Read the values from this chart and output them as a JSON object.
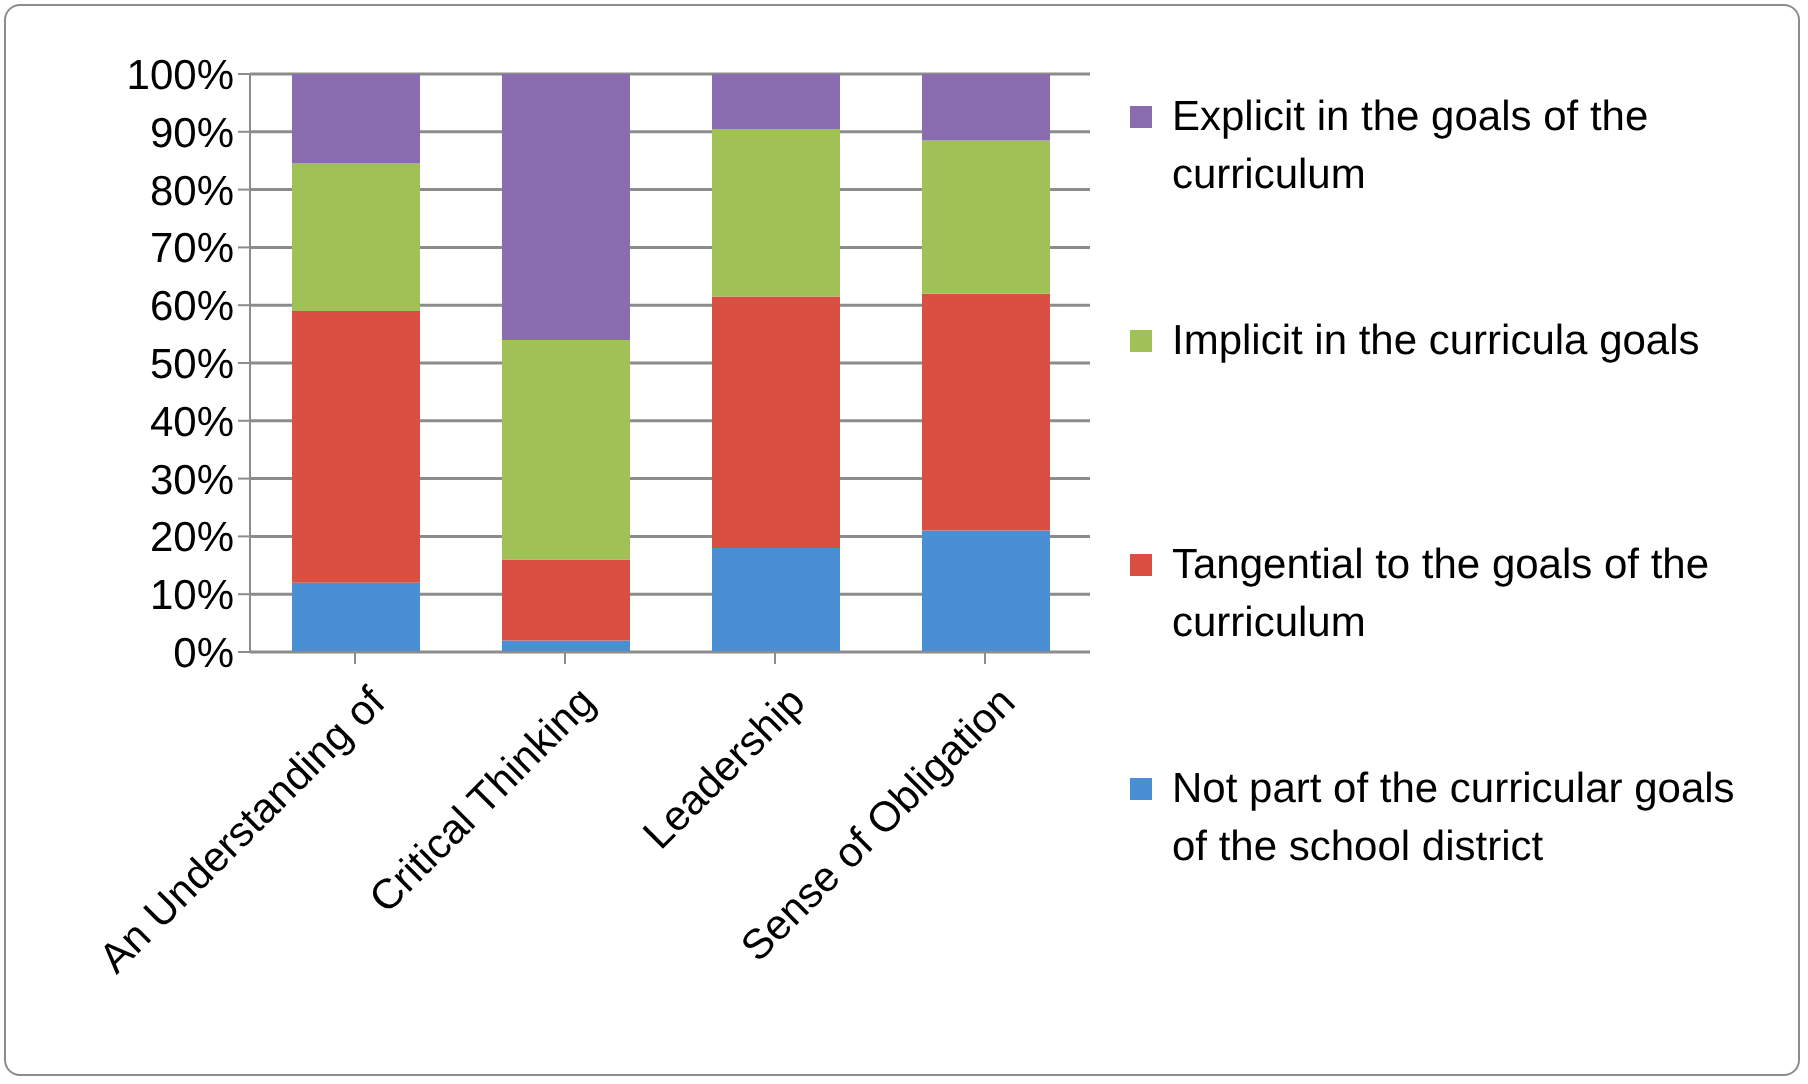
{
  "chart_data": {
    "type": "bar",
    "stacked": true,
    "categories": [
      "An Understanding of",
      "Critical Thinking",
      "Leadership",
      "Sense of Obligation"
    ],
    "series": [
      {
        "name": "Not part of the curricular goals of the school district",
        "color": "#4a8fd4",
        "values": [
          12,
          2,
          18,
          21
        ]
      },
      {
        "name": "Tangential to the goals of the curriculum",
        "color": "#d95043",
        "values": [
          47,
          14,
          43.5,
          41
        ]
      },
      {
        "name": "Implicit in the curricula goals",
        "color": "#a0c155",
        "values": [
          25.5,
          38,
          29,
          26.5
        ]
      },
      {
        "name": "Explicit in the goals of the curriculum",
        "color": "#8a6db0",
        "values": [
          15.5,
          46,
          9.5,
          11.5
        ]
      }
    ],
    "ylim": [
      0,
      100
    ],
    "yticks": [
      {
        "value": 0,
        "label": "0%"
      },
      {
        "value": 10,
        "label": "10%"
      },
      {
        "value": 20,
        "label": "20%"
      },
      {
        "value": 30,
        "label": "30%"
      },
      {
        "value": 40,
        "label": "40%"
      },
      {
        "value": 50,
        "label": "50%"
      },
      {
        "value": 60,
        "label": "60%"
      },
      {
        "value": 70,
        "label": "70%"
      },
      {
        "value": 80,
        "label": "80%"
      },
      {
        "value": 90,
        "label": "90%"
      },
      {
        "value": 100,
        "label": "100%"
      }
    ],
    "grid": "y",
    "legend": "right"
  }
}
